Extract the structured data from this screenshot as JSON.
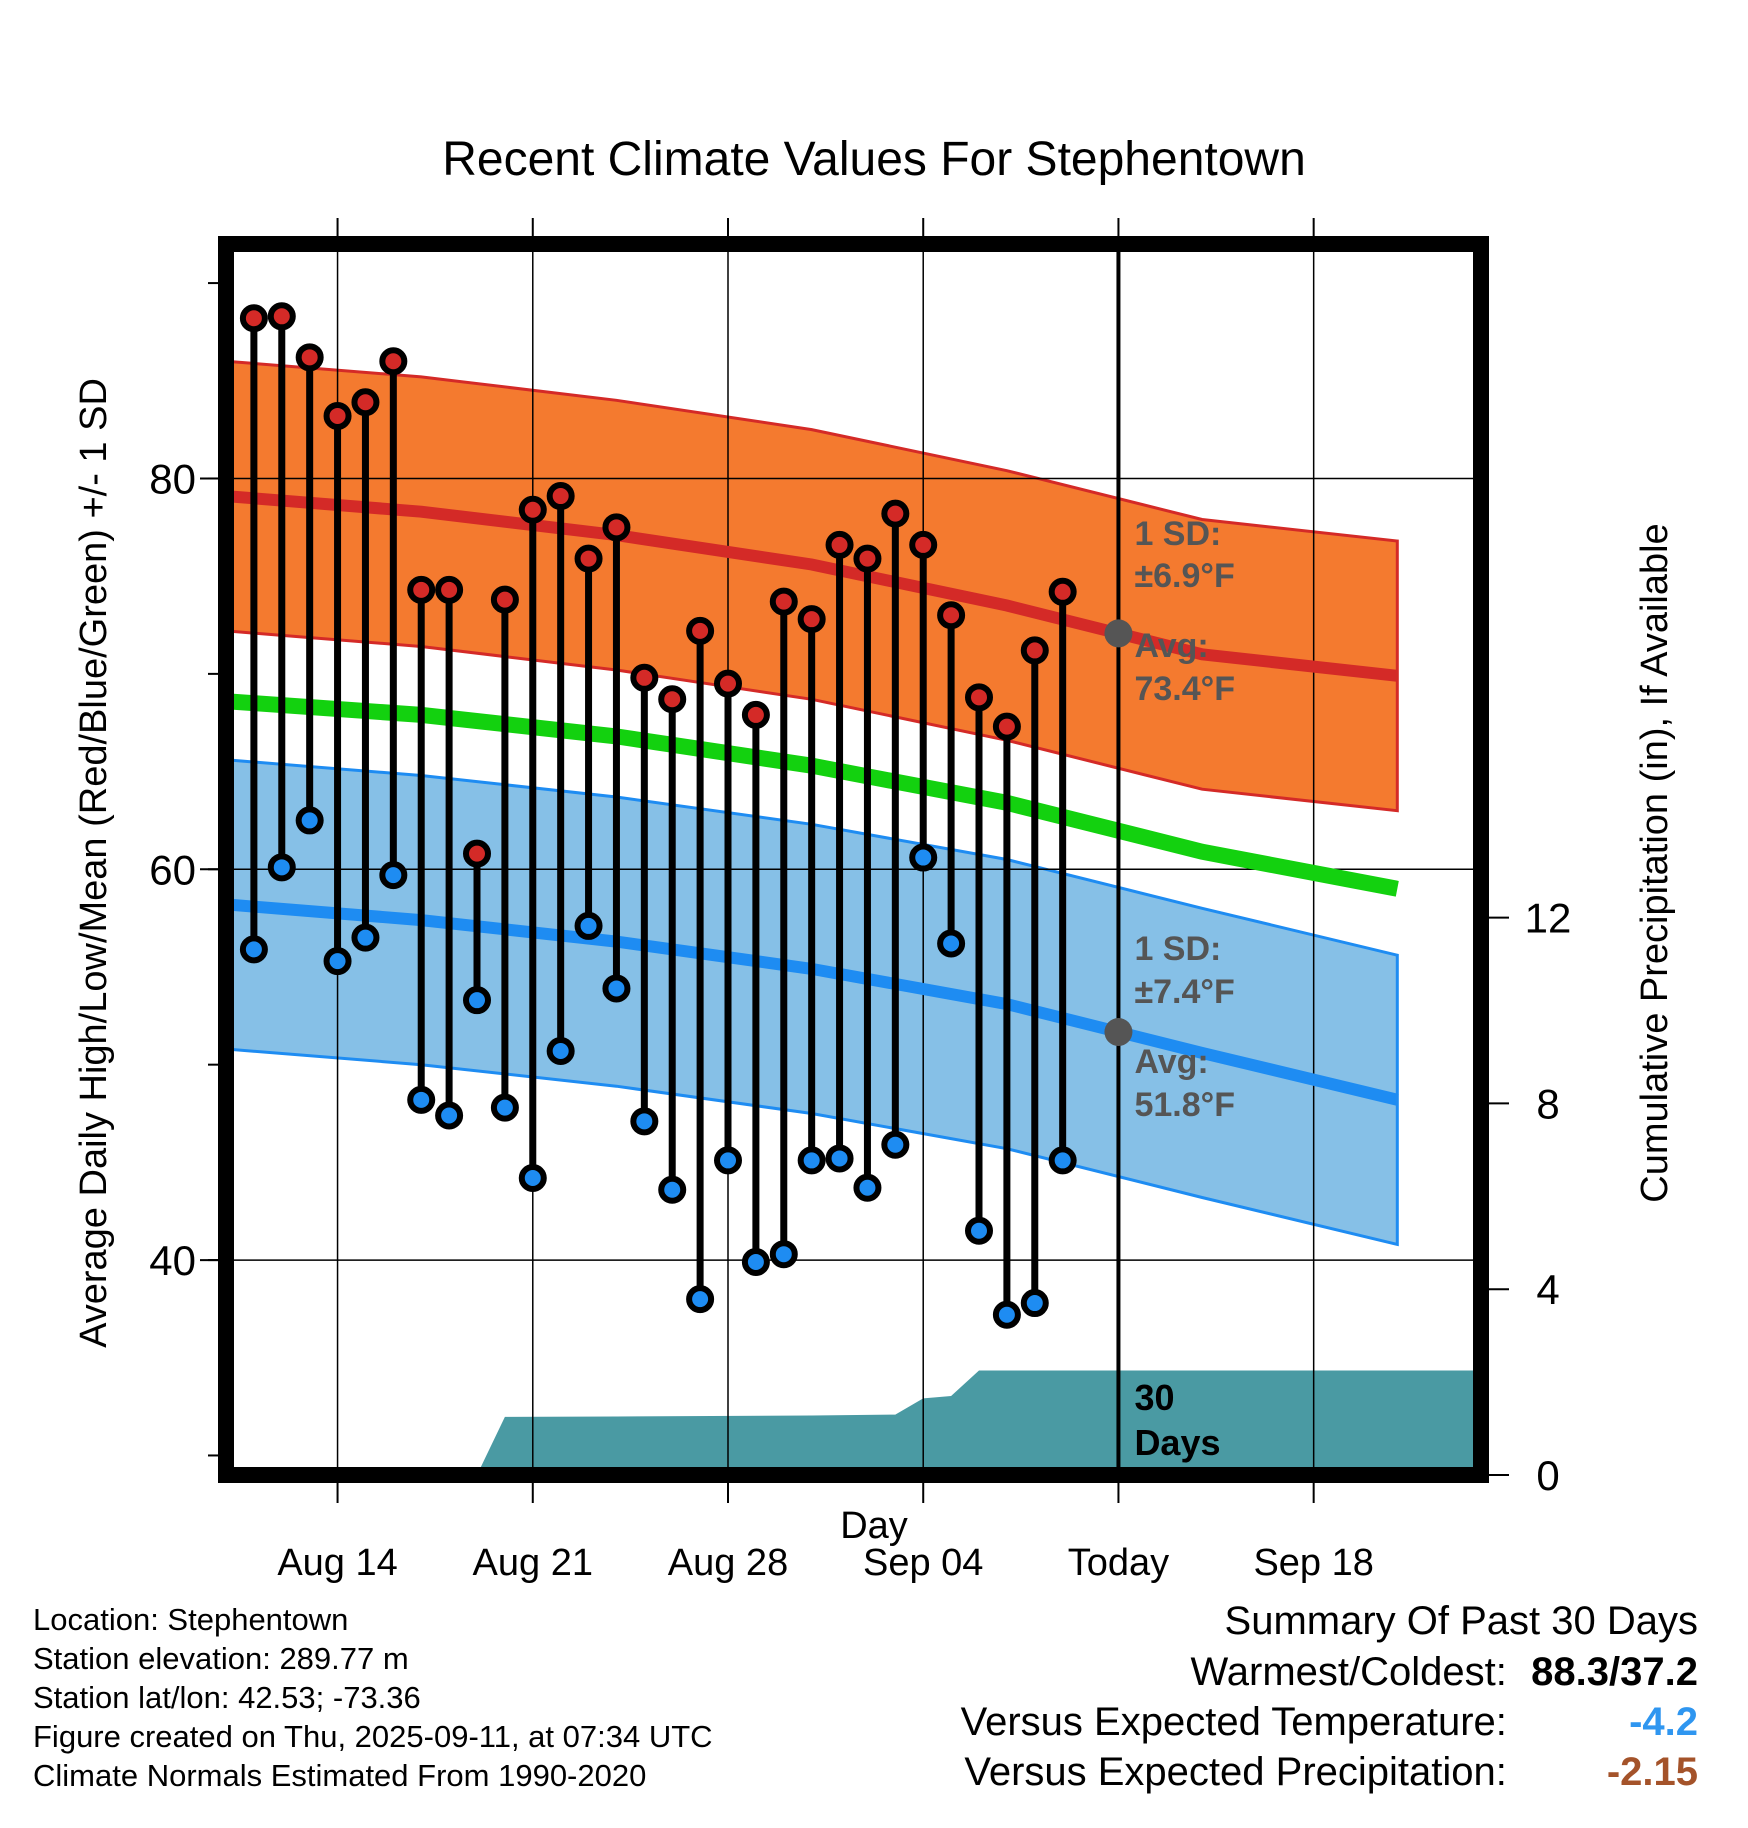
{
  "chart_data": {
    "type": "line",
    "title": "Recent Climate Values For Stephentown",
    "xlabel": "Day",
    "ylabel": "Average Daily High/Low/Mean (Red/Blue/Green) +/- 1 SD",
    "y2label": "Cumulative Precipitation (in), If Available",
    "x_range": [
      "2025-08-10",
      "2025-09-24"
    ],
    "ylim": [
      29,
      92
    ],
    "y2lim": [
      0,
      26.5
    ],
    "x_tick_dates": [
      "2025-08-14",
      "2025-08-21",
      "2025-08-28",
      "2025-09-04",
      "2025-09-11",
      "2025-09-18"
    ],
    "x_tick_labels": [
      "Aug 14",
      "Aug 21",
      "Aug 28",
      "Sep 04",
      "Today",
      "Sep 18"
    ],
    "y_ticks": [
      40,
      60,
      80
    ],
    "y2_ticks": [
      0,
      4,
      8,
      12
    ],
    "today": "2025-09-11",
    "grid": true,
    "colors": {
      "high_band": "#f47a2f",
      "high_avg": "#d42a27",
      "low_band": "#86c0e7",
      "low_avg": "#1e8cf2",
      "mean_avg": "#13d10f",
      "precip": "#4a9aa3",
      "annot": "#555555"
    },
    "normal_high": {
      "dates": [
        "2025-08-10",
        "2025-08-17",
        "2025-08-24",
        "2025-08-31",
        "2025-09-07",
        "2025-09-14",
        "2025-09-21"
      ],
      "avg": [
        79.1,
        78.3,
        77.1,
        75.6,
        73.5,
        71.0,
        69.9
      ],
      "sd": 6.9
    },
    "normal_low": {
      "dates": [
        "2025-08-10",
        "2025-08-17",
        "2025-08-24",
        "2025-08-31",
        "2025-09-07",
        "2025-09-14",
        "2025-09-21"
      ],
      "avg": [
        58.2,
        57.4,
        56.3,
        54.9,
        53.1,
        50.6,
        48.2
      ],
      "sd": 7.4
    },
    "normal_mean": {
      "dates": [
        "2025-08-10",
        "2025-08-17",
        "2025-08-24",
        "2025-08-31",
        "2025-09-07",
        "2025-09-14",
        "2025-09-21"
      ],
      "avg": [
        68.6,
        67.9,
        66.8,
        65.3,
        63.4,
        60.9,
        59.0
      ]
    },
    "observed": {
      "dates": [
        "2025-08-11",
        "2025-08-12",
        "2025-08-13",
        "2025-08-14",
        "2025-08-15",
        "2025-08-16",
        "2025-08-17",
        "2025-08-18",
        "2025-08-19",
        "2025-08-20",
        "2025-08-21",
        "2025-08-22",
        "2025-08-23",
        "2025-08-24",
        "2025-08-25",
        "2025-08-26",
        "2025-08-27",
        "2025-08-28",
        "2025-08-29",
        "2025-08-30",
        "2025-08-31",
        "2025-09-01",
        "2025-09-02",
        "2025-09-03",
        "2025-09-04",
        "2025-09-05",
        "2025-09-06",
        "2025-09-07",
        "2025-09-08",
        "2025-09-09",
        "2025-09-10"
      ],
      "high": [
        88.2,
        88.3,
        86.2,
        83.2,
        83.9,
        86.0,
        74.3,
        74.3,
        60.8,
        73.8,
        78.4,
        79.1,
        75.9,
        77.5,
        69.8,
        68.7,
        72.2,
        69.5,
        67.9,
        73.7,
        72.8,
        76.6,
        75.9,
        78.2,
        76.6,
        73.0,
        68.8,
        67.3,
        71.2,
        74.2,
        null
      ],
      "low": [
        55.9,
        60.1,
        62.5,
        55.3,
        56.5,
        59.7,
        48.2,
        47.4,
        53.3,
        47.8,
        44.2,
        50.7,
        57.1,
        53.9,
        47.1,
        43.6,
        38.0,
        45.1,
        39.9,
        40.3,
        45.1,
        45.2,
        43.7,
        45.9,
        60.6,
        56.2,
        41.5,
        37.2,
        37.8,
        45.1,
        null
      ]
    },
    "precip_cumulative": {
      "dates": [
        "2025-08-19",
        "2025-08-20",
        "2025-08-24",
        "2025-08-31",
        "2025-09-03",
        "2025-09-04",
        "2025-09-05",
        "2025-09-06",
        "2025-09-10",
        "2025-09-11",
        "2025-09-24"
      ],
      "values": [
        0,
        1.25,
        1.26,
        1.28,
        1.3,
        1.65,
        1.7,
        2.25,
        2.25,
        2.25,
        2.25
      ]
    },
    "annotations": {
      "high_sd": "1 SD:",
      "high_sd_value": "±6.9°F",
      "high_avg_label": "Avg:",
      "high_avg_value": "73.4°F",
      "low_sd": "1 SD:",
      "low_sd_value": "±7.4°F",
      "low_avg_label": "Avg:",
      "low_avg_value": "51.8°F",
      "window_number": "30",
      "window_unit": "Days"
    }
  },
  "info": {
    "location": "Location: Stephentown",
    "elevation": "Station elevation: 289.77 m",
    "latlon": "Station lat/lon: 42.53; -73.36",
    "created": "Figure created on Thu, 2025-09-11, at 07:34 UTC",
    "normals": "Climate Normals Estimated From 1990-2020"
  },
  "summary": {
    "heading": "Summary Of Past 30 Days",
    "warm_cold_label": "Warmest/Coldest:",
    "warm_cold_value": "88.3/37.2",
    "temp_label": "Versus Expected Temperature:",
    "temp_value": "-4.2",
    "temp_color": "#2f96f0",
    "precip_label": "Versus Expected Precipitation:",
    "precip_value": "-2.15",
    "precip_color": "#a4532a"
  }
}
